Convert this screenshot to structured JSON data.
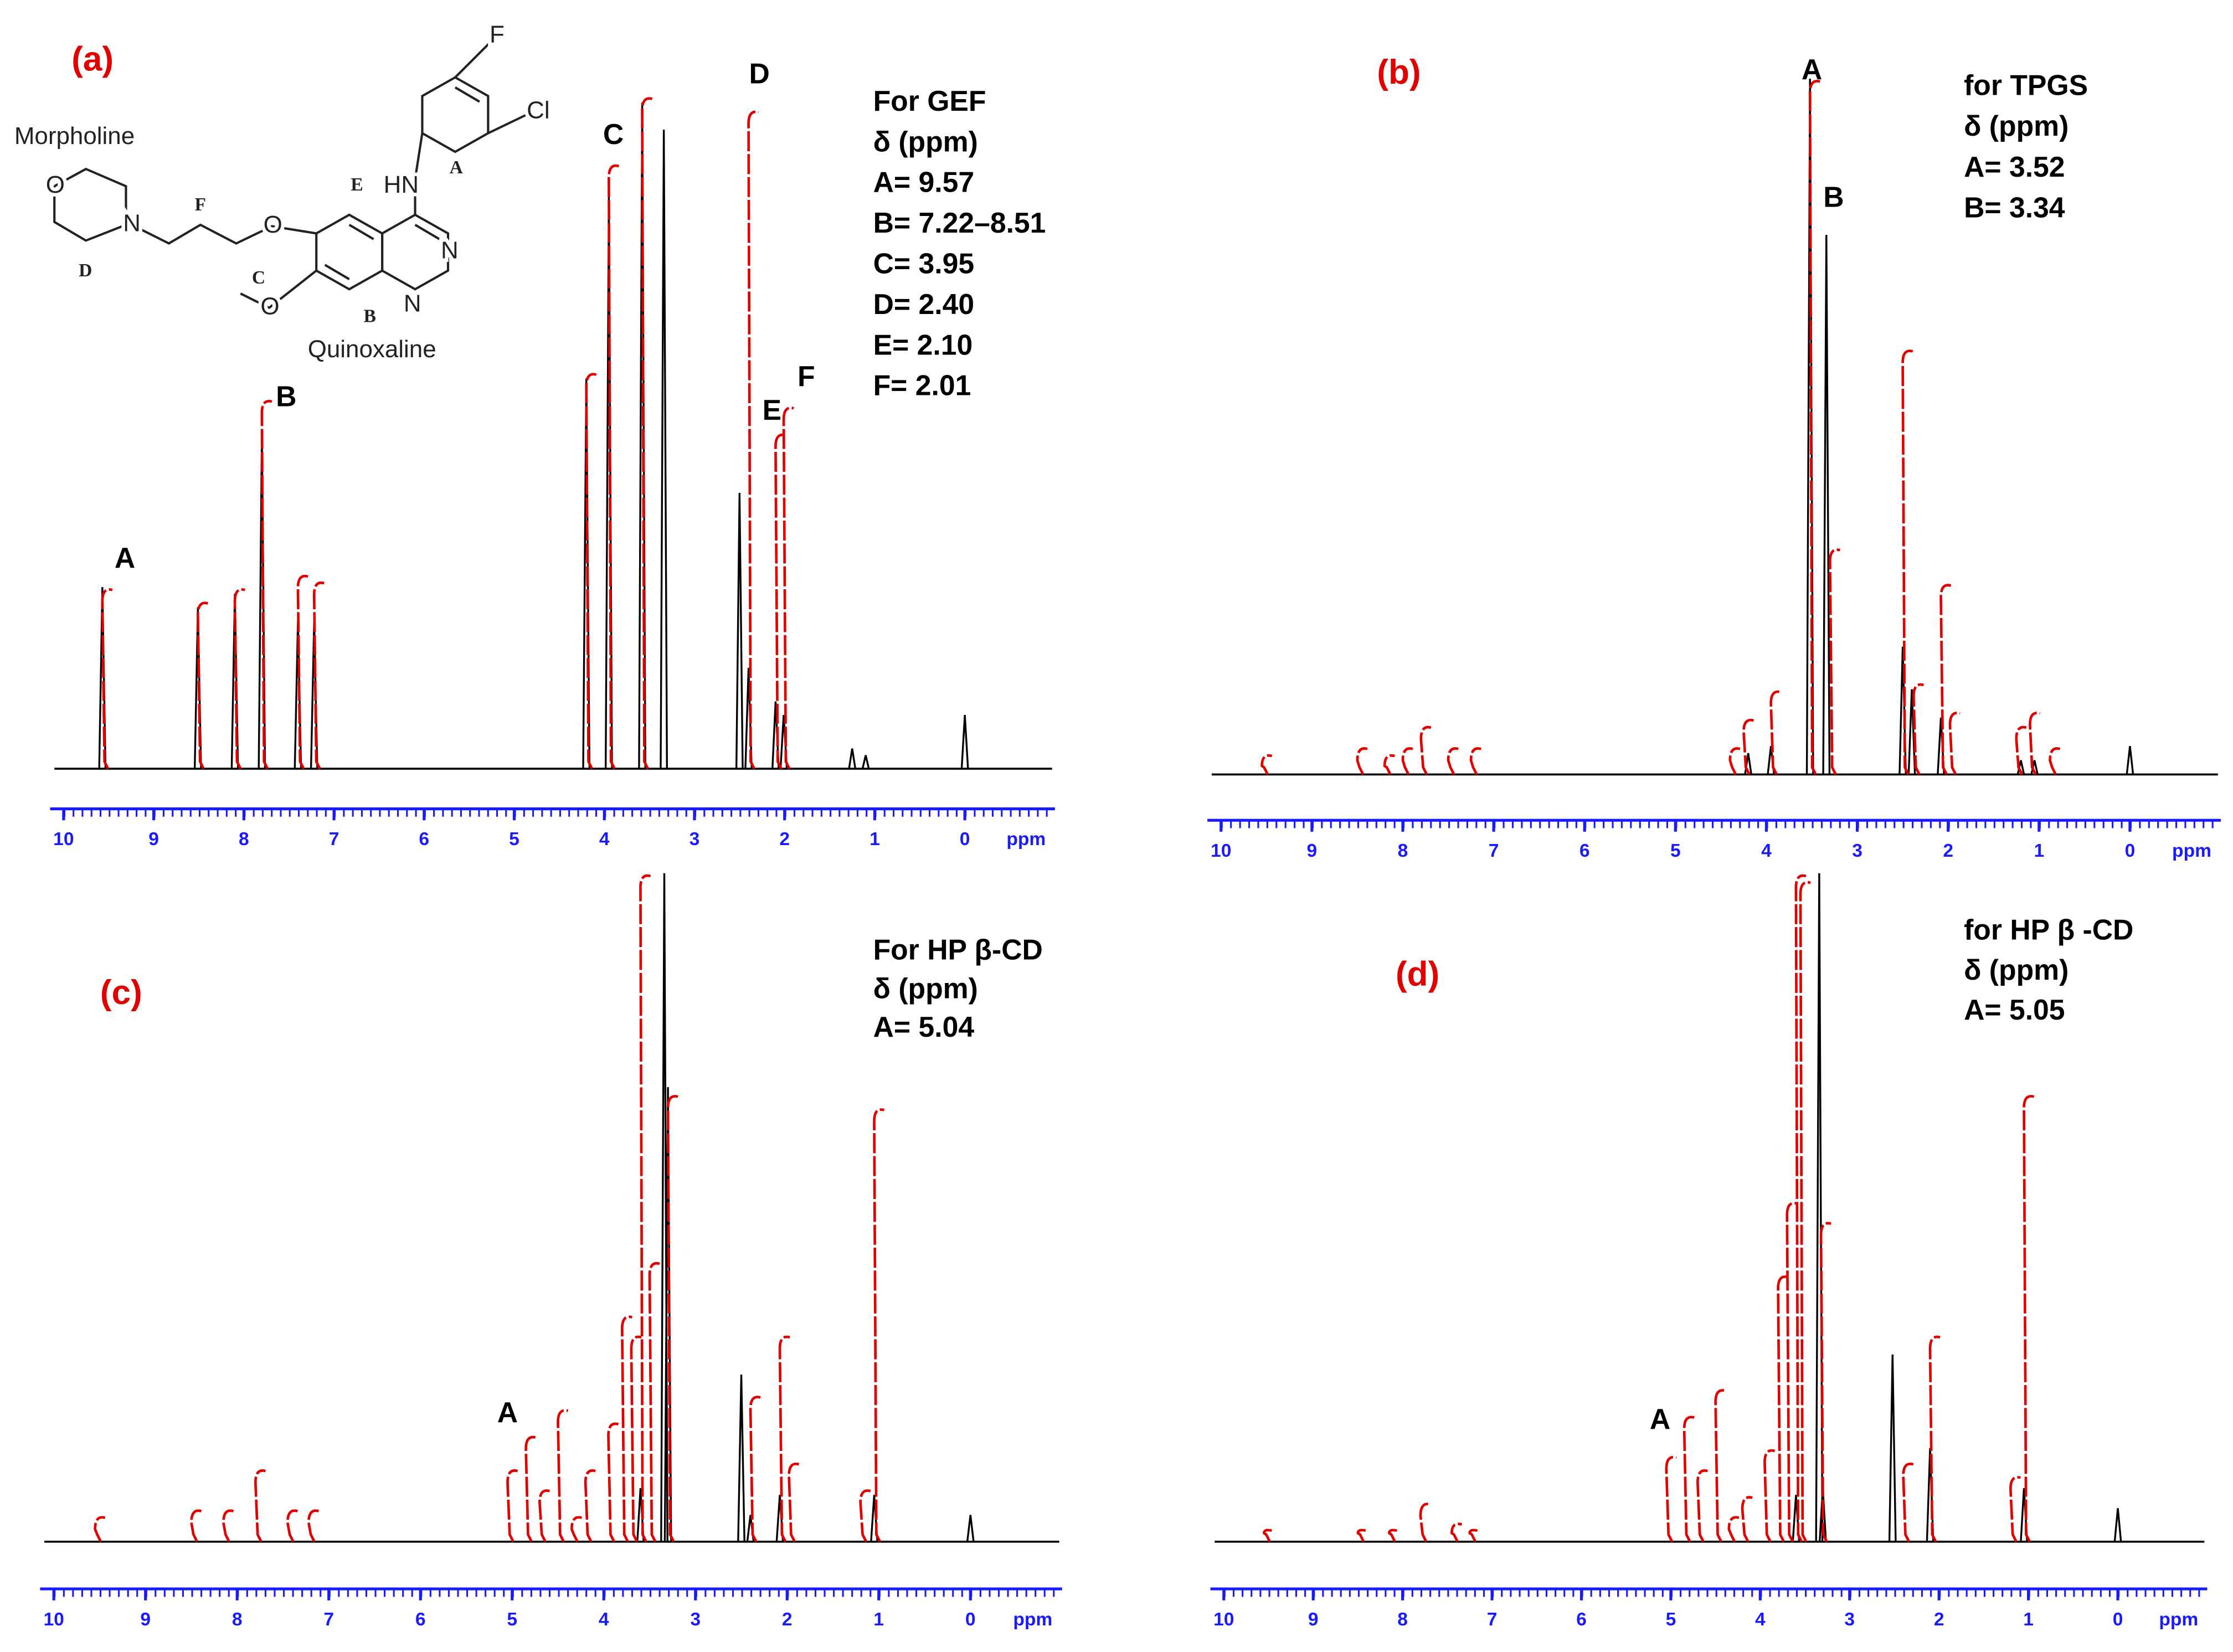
{
  "chart_data": [
    {
      "type": "spectrum",
      "panel_label": "(a)",
      "info": [
        "For GEF",
        "δ (ppm)",
        "A= 9.57",
        "B= 7.22–8.51",
        "C= 3.95",
        "D= 2.40",
        "E= 2.10",
        "F= 2.01"
      ],
      "structure_labels": [
        "Morpholine",
        "Quinoxaline",
        "F",
        "Cl",
        "HN",
        "A",
        "E",
        "F",
        "O",
        "N",
        "D",
        "O",
        "C",
        "O",
        "B",
        "N",
        "N"
      ],
      "peak_labels": [
        {
          "text": "A",
          "x": 9.32,
          "y": 31
        },
        {
          "text": "B",
          "x": 7.53,
          "y": 55
        },
        {
          "text": "C",
          "x": 3.9,
          "y": 94
        },
        {
          "text": "D",
          "x": 2.28,
          "y": 103
        },
        {
          "text": "E",
          "x": 2.14,
          "y": 53
        },
        {
          "text": "F",
          "x": 1.76,
          "y": 58
        }
      ],
      "xlim": [
        10.15,
        -1
      ],
      "xticks": [
        10,
        9,
        8,
        7,
        6,
        5,
        4,
        3,
        2,
        1,
        0
      ],
      "x_unit": "ppm",
      "ylim": [
        0,
        100
      ],
      "series": [
        {
          "color": "#000000",
          "x": [
            9.57,
            8.51,
            8.1,
            7.8,
            7.4,
            7.22,
            4.2,
            3.95,
            3.58,
            3.34,
            2.5,
            2.4,
            2.1,
            2.01,
            1.25,
            1.1,
            0
          ],
          "values": [
            27,
            24,
            26,
            50,
            22,
            22,
            58,
            85,
            99,
            95,
            41,
            15,
            10,
            8,
            3,
            2,
            8
          ]
        },
        {
          "color": "#e00000",
          "x": [
            9.57,
            8.51,
            8.1,
            7.8,
            7.4,
            7.22,
            4.2,
            3.95,
            3.58,
            2.4,
            2.1,
            2.01
          ],
          "values": [
            27,
            25,
            27,
            55,
            29,
            28,
            59,
            90,
            100,
            98,
            50,
            54
          ]
        }
      ]
    },
    {
      "type": "spectrum",
      "panel_label": "(b)",
      "info": [
        "for TPGS",
        "δ (ppm)",
        "A= 3.52",
        "B= 3.34"
      ],
      "peak_labels": [
        {
          "text": "A",
          "x": 3.5,
          "y": 99
        },
        {
          "text": "B",
          "x": 3.26,
          "y": 81
        }
      ],
      "xlim": [
        10.15,
        -1
      ],
      "xticks": [
        10,
        9,
        8,
        7,
        6,
        5,
        4,
        3,
        2,
        1,
        0
      ],
      "x_unit": "ppm",
      "ylim": [
        0,
        100
      ],
      "series": [
        {
          "color": "#000000",
          "x": [
            4.2,
            3.95,
            3.52,
            3.34,
            2.5,
            2.4,
            2.08,
            1.2,
            1.05,
            0
          ],
          "values": [
            3,
            4,
            98,
            76,
            18,
            12,
            8,
            2,
            2,
            4
          ]
        },
        {
          "color": "#e00000",
          "x": [
            9.55,
            8.5,
            8.2,
            8.0,
            7.8,
            7.5,
            7.25,
            4.4,
            4.25,
            3.95,
            3.52,
            3.3,
            2.5,
            2.38,
            2.08,
            1.98,
            1.25,
            1.1,
            0.88
          ],
          "values": [
            3,
            4,
            3,
            4,
            7,
            4,
            4,
            4,
            8,
            12,
            98,
            32,
            60,
            13,
            27,
            9,
            7,
            9,
            4
          ]
        }
      ]
    },
    {
      "type": "spectrum",
      "panel_label": "(c)",
      "info": [
        "For HP β-CD",
        "δ (ppm)",
        "A= 5.04"
      ],
      "peak_labels": [
        {
          "text": "A",
          "x": 5.05,
          "y": 19
        }
      ],
      "xlim": [
        10.15,
        -1
      ],
      "xticks": [
        10,
        9,
        8,
        7,
        6,
        5,
        4,
        3,
        2,
        1,
        0
      ],
      "x_unit": "ppm",
      "ylim": [
        0,
        100
      ],
      "series": [
        {
          "color": "#000000",
          "x": [
            3.6,
            3.34,
            3.3,
            2.5,
            2.4,
            2.08,
            1.05,
            0
          ],
          "values": [
            8,
            100,
            68,
            25,
            4,
            7,
            7,
            4
          ]
        },
        {
          "color": "#e00000",
          "x": [
            9.55,
            8.5,
            8.15,
            7.8,
            7.45,
            7.22,
            5.05,
            4.85,
            4.7,
            4.5,
            4.35,
            4.2,
            3.95,
            3.8,
            3.7,
            3.6,
            3.5,
            3.3,
            2.4,
            2.08,
            1.98,
            1.2,
            1.05
          ],
          "values": [
            4,
            5,
            5,
            11,
            5,
            5,
            11,
            16,
            8,
            20,
            4,
            11,
            18,
            34,
            31,
            100,
            42,
            67,
            22,
            31,
            12,
            8,
            65
          ]
        }
      ]
    },
    {
      "type": "spectrum",
      "panel_label": "(d)",
      "info": [
        "for HP β -CD",
        "δ (ppm)",
        "A= 5.05"
      ],
      "peak_labels": [
        {
          "text": "A",
          "x": 5.12,
          "y": 18
        }
      ],
      "xlim": [
        10.15,
        -1
      ],
      "xticks": [
        10,
        9,
        8,
        7,
        6,
        5,
        4,
        3,
        2,
        1,
        0
      ],
      "x_unit": "ppm",
      "ylim": [
        0,
        100
      ],
      "series": [
        {
          "color": "#000000",
          "x": [
            3.6,
            3.34,
            3.3,
            2.52,
            2.1,
            1.05,
            0
          ],
          "values": [
            7,
            100,
            8,
            28,
            14,
            8,
            5
          ]
        },
        {
          "color": "#e00000",
          "x": [
            9.55,
            8.5,
            8.15,
            7.8,
            7.45,
            7.25,
            5.05,
            4.85,
            4.7,
            4.5,
            4.35,
            4.2,
            3.95,
            3.8,
            3.7,
            3.6,
            3.55,
            3.32,
            2.4,
            2.1,
            1.2,
            1.05
          ],
          "values": [
            2,
            2,
            2,
            6,
            3,
            2,
            13,
            19,
            11,
            23,
            4,
            7,
            14,
            40,
            51,
            100,
            99,
            48,
            12,
            31,
            10,
            67
          ]
        }
      ]
    }
  ]
}
